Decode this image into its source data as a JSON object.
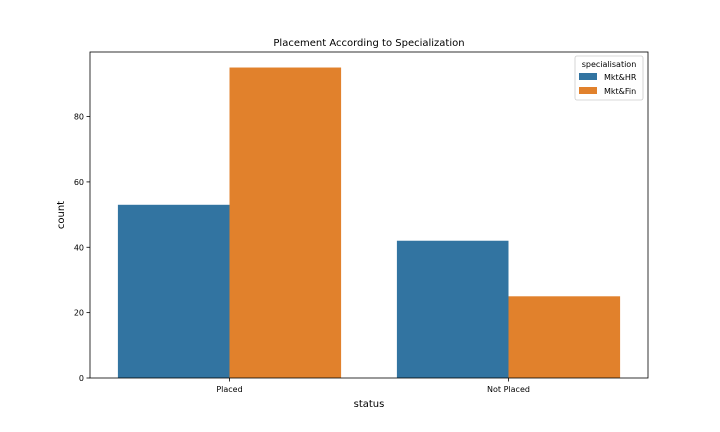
{
  "chart_data": {
    "type": "bar",
    "title": "Placement According to Specialization",
    "xlabel": "status",
    "ylabel": "count",
    "categories": [
      "Placed",
      "Not Placed"
    ],
    "ylim": [
      0,
      99.75
    ],
    "yticks": [
      0,
      20,
      40,
      60,
      80
    ],
    "legend": {
      "title": "specialisation",
      "placement": "top-right"
    },
    "series": [
      {
        "name": "Mkt&HR",
        "color": "#3274a1",
        "values": [
          53,
          42
        ]
      },
      {
        "name": "Mkt&Fin",
        "color": "#e1812c",
        "values": [
          95,
          25
        ]
      }
    ],
    "grid": false
  }
}
